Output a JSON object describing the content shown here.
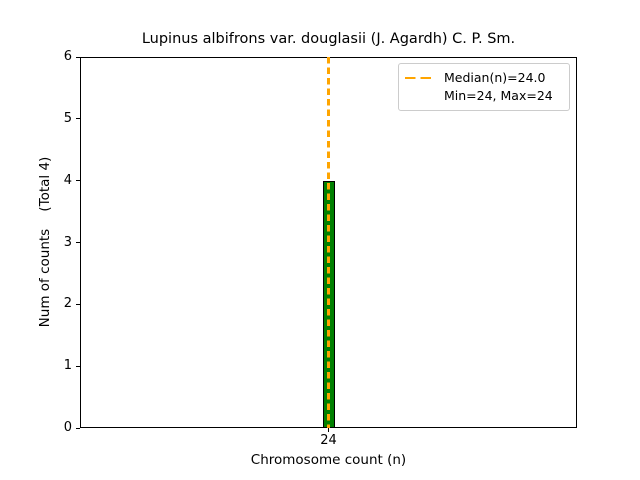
{
  "chart_data": {
    "type": "bar",
    "title": "Lupinus albifrons var. douglasii (J. Agardh) C. P. Sm.",
    "xlabel": "Chromosome count (n)",
    "ylabel": "Num of counts    (Total 4)",
    "categories": [
      "24"
    ],
    "values": [
      4
    ],
    "total_counts": 4,
    "ylim": [
      0,
      6
    ],
    "yticks": [
      0,
      1,
      2,
      3,
      4,
      5,
      6
    ],
    "median": 24.0,
    "min": 24,
    "max": 24,
    "grid": false,
    "legend": {
      "position": "upper right",
      "entries": [
        {
          "label": "Median(n)=24.0",
          "marker": "orange-dashed-line"
        },
        {
          "label": "Min=24, Max=24",
          "marker": "none"
        }
      ]
    },
    "colors": {
      "bar_fill": "#008000",
      "bar_edge": "#000000",
      "median_line": "#FFA500",
      "axes": "#000000",
      "background": "#ffffff"
    }
  }
}
